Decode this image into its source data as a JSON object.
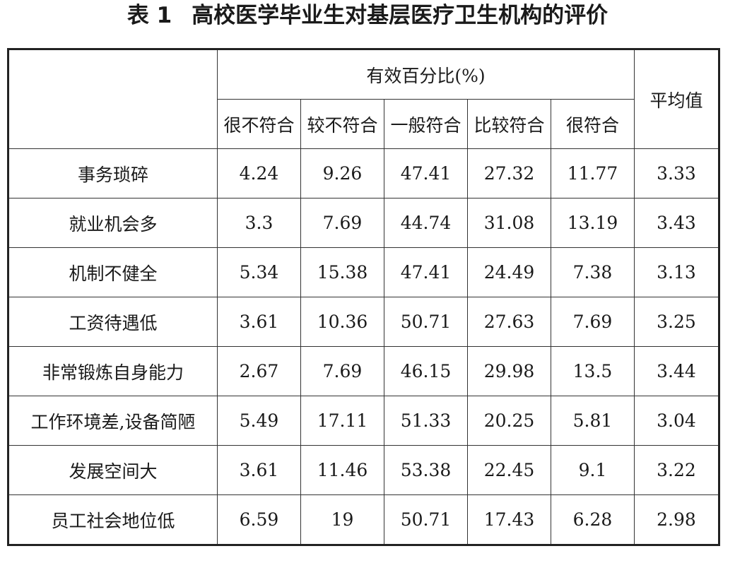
{
  "title": {
    "label": "表 1",
    "text": "高校医学毕业生对基层医疗卫生机构的评价"
  },
  "header": {
    "group": "有效百分比(%)",
    "columns": [
      "很不符合",
      "较不符合",
      "一般符合",
      "比较符合",
      "很符合"
    ],
    "average": "平均值"
  },
  "rows": [
    {
      "label": "事务琐碎",
      "values": [
        "4.24",
        "9.26",
        "47.41",
        "27.32",
        "11.77"
      ],
      "avg": "3.33"
    },
    {
      "label": "就业机会多",
      "values": [
        "3.3",
        "7.69",
        "44.74",
        "31.08",
        "13.19"
      ],
      "avg": "3.43"
    },
    {
      "label": "机制不健全",
      "values": [
        "5.34",
        "15.38",
        "47.41",
        "24.49",
        "7.38"
      ],
      "avg": "3.13"
    },
    {
      "label": "工资待遇低",
      "values": [
        "3.61",
        "10.36",
        "50.71",
        "27.63",
        "7.69"
      ],
      "avg": "3.25"
    },
    {
      "label": "非常锻炼自身能力",
      "values": [
        "2.67",
        "7.69",
        "46.15",
        "29.98",
        "13.5"
      ],
      "avg": "3.44"
    },
    {
      "label": "工作环境差,设备简陋",
      "values": [
        "5.49",
        "17.11",
        "51.33",
        "20.25",
        "5.81"
      ],
      "avg": "3.04"
    },
    {
      "label": "发展空间大",
      "values": [
        "3.61",
        "11.46",
        "53.38",
        "22.45",
        "9.1"
      ],
      "avg": "3.22"
    },
    {
      "label": "员工社会地位低",
      "values": [
        "6.59",
        "19",
        "50.71",
        "17.43",
        "6.28"
      ],
      "avg": "2.98"
    }
  ]
}
